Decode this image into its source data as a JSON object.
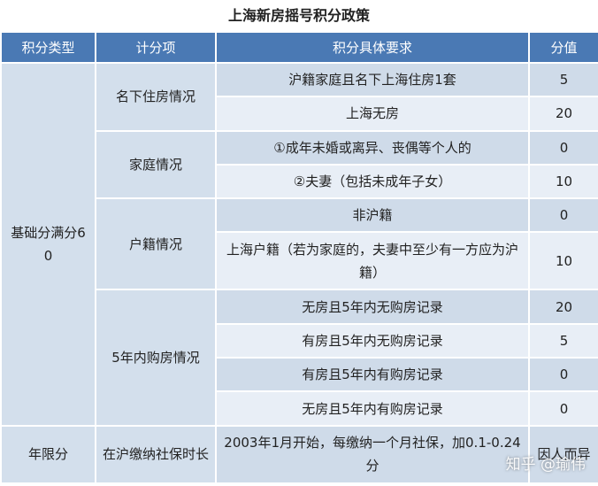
{
  "title": "上海新房摇号积分政策",
  "table": {
    "header": [
      "积分类型",
      "计分项",
      "积分具体要求",
      "分值"
    ],
    "groups": [
      {
        "label": "基础分满分60",
        "items": [
          {
            "label": "名下住房情况",
            "rules": [
              {
                "text": "沪籍家庭且名下上海住房1套",
                "score": 5
              },
              {
                "text": "上海无房",
                "score": 20
              }
            ]
          },
          {
            "label": "家庭情况",
            "rules": [
              {
                "text": "①成年未婚或离异、丧偶等个人的",
                "score": 0
              },
              {
                "text": "②夫妻（包括未成年子女）",
                "score": 10
              }
            ]
          },
          {
            "label": "户籍情况",
            "rules": [
              {
                "text": "非沪籍",
                "score": 0
              },
              {
                "text": "上海户籍（若为家庭的，夫妻中至少有一方应为沪籍）",
                "score": 10
              }
            ]
          },
          {
            "label": "5年内购房情况",
            "rules": [
              {
                "text": "无房且5年内无购房记录",
                "score": 20
              },
              {
                "text": "有房且5年内无购房记录",
                "score": 5
              },
              {
                "text": "有房且5年内有购房记录",
                "score": 0
              },
              {
                "text": "无房且5年内有购房记录",
                "score": 0
              }
            ]
          }
        ]
      },
      {
        "label": "年限分",
        "items": [
          {
            "label": "在沪缴纳社保时长",
            "rules": [
              {
                "text": "2003年1月开始，每缴纳一个月社保，加0.1-0.24分",
                "score": "因人而异"
              }
            ]
          }
        ]
      }
    ]
  },
  "watermark": "知乎 @瑜伟"
}
